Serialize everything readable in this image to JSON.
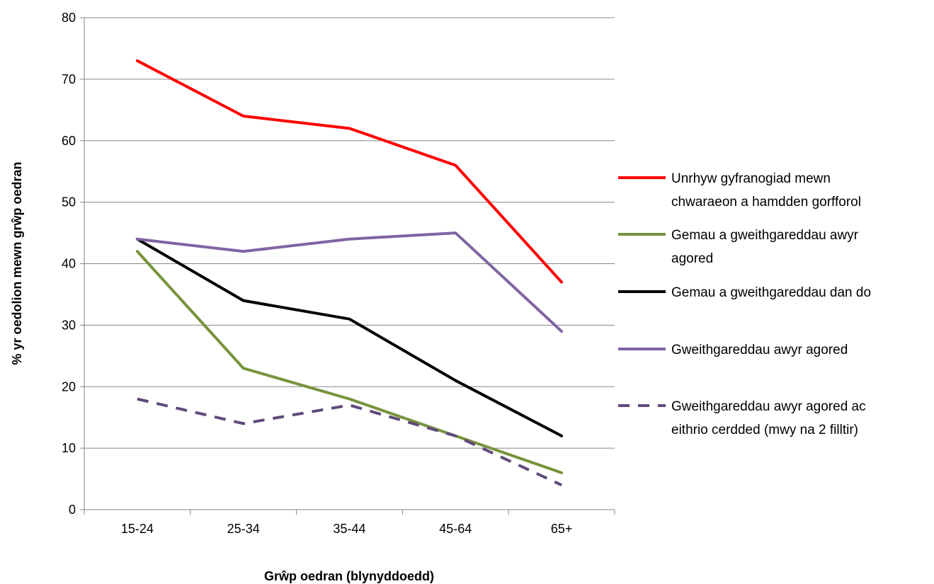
{
  "chart_data": {
    "type": "line",
    "title": "",
    "xlabel": "Grŵp oedran (blynyddoedd)",
    "ylabel": "% yr oedolion mewn grŵp oedran",
    "categories": [
      "15-24",
      "25-34",
      "35-44",
      "45-64",
      "65+"
    ],
    "ylim": [
      0,
      80
    ],
    "yticks": [
      0,
      10,
      20,
      30,
      40,
      50,
      60,
      70,
      80
    ],
    "grid": "horizontal",
    "legend_position": "right",
    "series": [
      {
        "name": "Unrhyw gyfranogiad mewn chwaraeon a hamdden gorfforol",
        "name_lines": [
          "Unrhyw gyfranogiad mewn",
          "chwaraeon a hamdden gorfforol"
        ],
        "values": [
          73,
          64,
          62,
          56,
          37
        ],
        "color": "#ff0000",
        "dash": "solid"
      },
      {
        "name": "Gemau a gweithgareddau awyr agored",
        "name_lines": [
          "Gemau a gweithgareddau awyr",
          "agored"
        ],
        "values": [
          42,
          23,
          18,
          12,
          6
        ],
        "color": "#77933c",
        "dash": "solid"
      },
      {
        "name": "Gemau a gweithgareddau dan do",
        "name_lines": [
          "Gemau a gweithgareddau dan do"
        ],
        "values": [
          44,
          34,
          31,
          21,
          12
        ],
        "color": "#000000",
        "dash": "solid"
      },
      {
        "name": "Gweithgareddau awyr agored",
        "name_lines": [
          "Gweithgareddau awyr agored"
        ],
        "values": [
          44,
          42,
          44,
          45,
          29
        ],
        "color": "#8064a2",
        "dash": "solid"
      },
      {
        "name": "Gweithgareddau awyr agored ac eithrio cerdded (mwy na 2 filltir)",
        "name_lines": [
          "Gweithgareddau awyr agored ac",
          "eithrio cerdded (mwy na 2 filltir)"
        ],
        "values": [
          18,
          14,
          17,
          12,
          4
        ],
        "color": "#604a7b",
        "dash": "dashed"
      }
    ]
  }
}
